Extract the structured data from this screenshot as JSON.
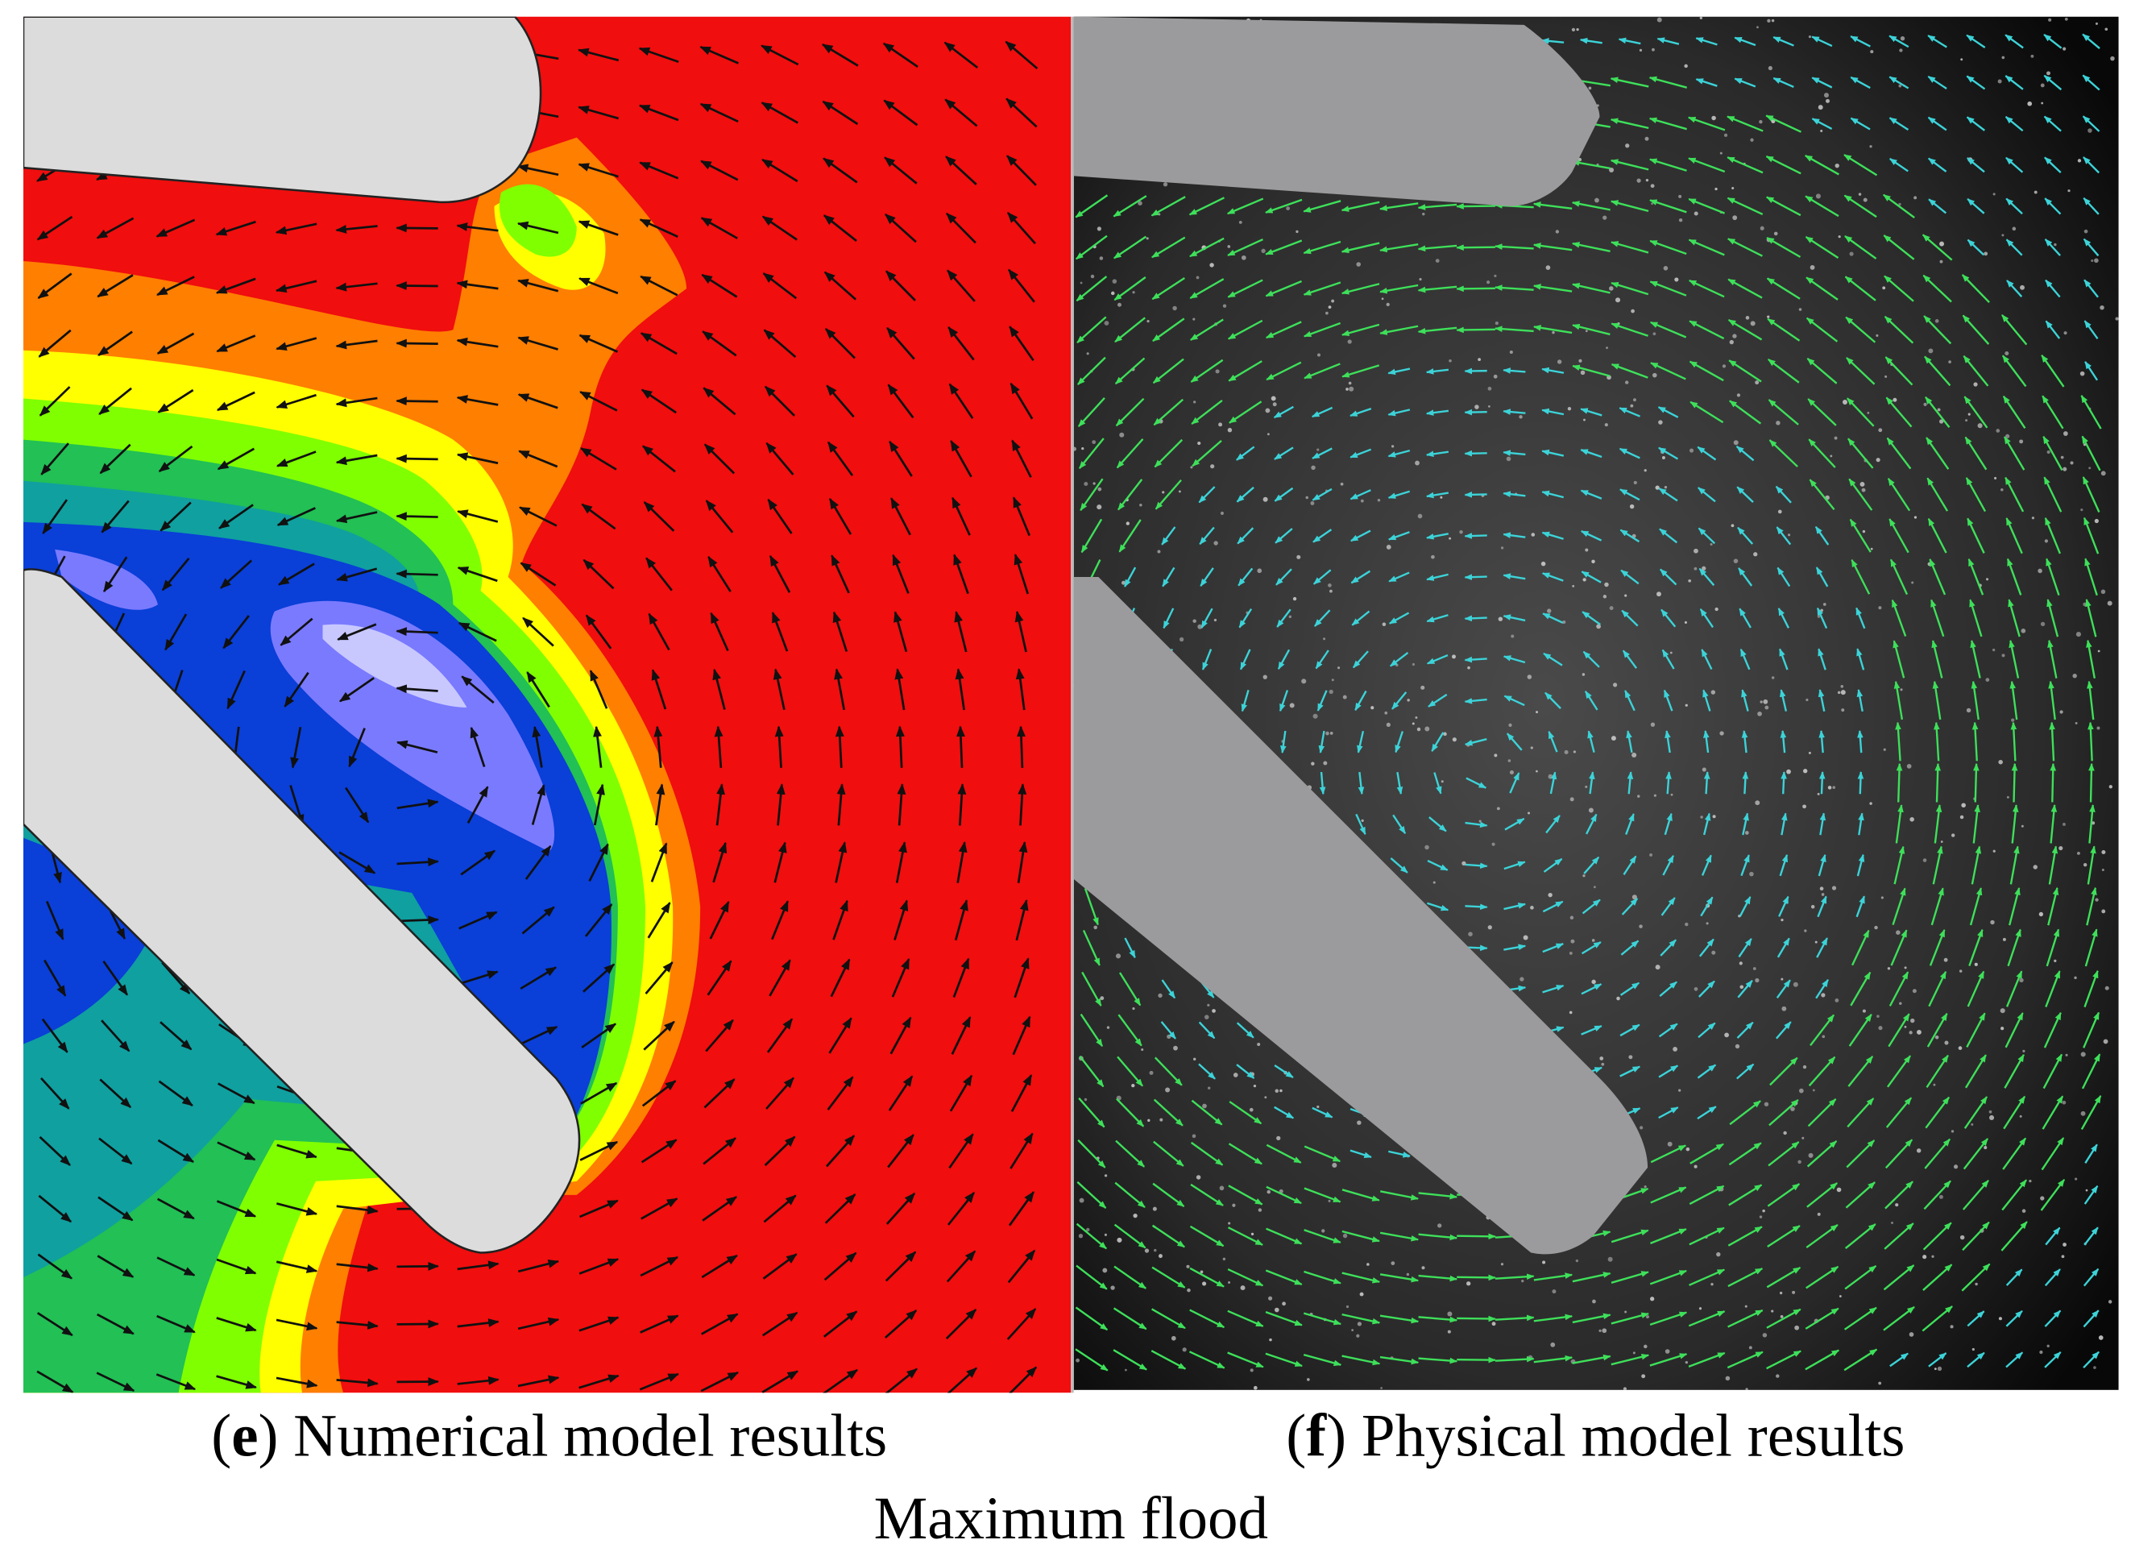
{
  "panels": [
    {
      "caption_parts": [
        "(",
        "e",
        ") Numerical model results"
      ]
    },
    {
      "caption_parts": [
        "(",
        "f",
        ") Physical model results"
      ]
    }
  ],
  "title": "Maximum flood"
}
